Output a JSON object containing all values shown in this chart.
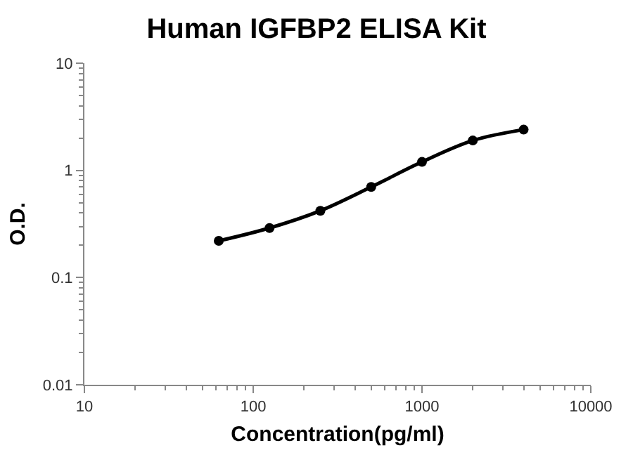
{
  "chart_data": {
    "type": "line",
    "title": "Human IGFBP2 ELISA Kit",
    "xlabel": "Concentration(pg/ml)",
    "ylabel": "O.D.",
    "x": [
      62.5,
      125,
      250,
      500,
      1000,
      2000,
      4000
    ],
    "series": [
      {
        "color": "#000000",
        "values": [
          0.22,
          0.29,
          0.42,
          0.7,
          1.2,
          1.9,
          2.4
        ]
      }
    ],
    "log": "xy",
    "xlim": [
      10,
      10000
    ],
    "ylim": [
      0.01,
      10
    ],
    "xticks": [
      10,
      100,
      1000,
      10000
    ],
    "yticks": [
      0.01,
      0.1,
      1,
      10
    ],
    "legend": false,
    "marker": "circle",
    "line_style": "solid"
  }
}
